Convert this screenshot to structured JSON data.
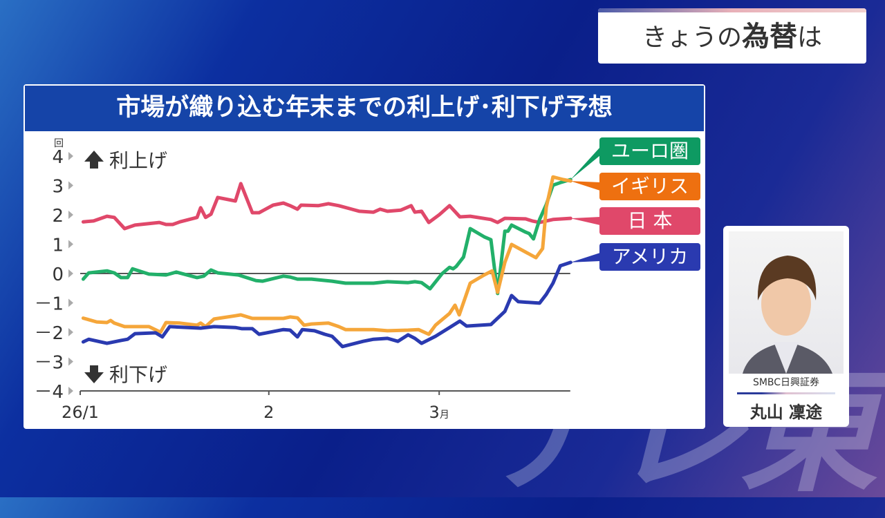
{
  "logo_text": "テレ東",
  "top_banner": {
    "prefix": "きょうの",
    "bold": "為替",
    "suffix": "は"
  },
  "guest": {
    "company": "SMBC日興証券",
    "name": "丸山 凜途"
  },
  "chart_data": {
    "type": "line",
    "title": "市場が織り込む年末までの利上げ･利下げ予想",
    "ylabel": "回",
    "ylim": [
      -4,
      4
    ],
    "yticks": [
      {
        "v": 4,
        "label": "4"
      },
      {
        "v": 3,
        "label": "3"
      },
      {
        "v": 2,
        "label": "2"
      },
      {
        "v": 1,
        "label": "1"
      },
      {
        "v": 0,
        "label": "0"
      },
      {
        "v": -1,
        "label": "－1"
      },
      {
        "v": -2,
        "label": "－2"
      },
      {
        "v": -3,
        "label": "－3"
      },
      {
        "v": -4,
        "label": "－4"
      }
    ],
    "x_unit": "days since 2026-01-01",
    "xlim": [
      0,
      81
    ],
    "xticks": [
      {
        "v": 0,
        "label": "26/1",
        "suffix": ""
      },
      {
        "v": 31,
        "label": "2",
        "suffix": ""
      },
      {
        "v": 59,
        "label": "3",
        "suffix": "月"
      }
    ],
    "annotations": {
      "up": "利上げ",
      "down": "利下げ"
    },
    "series": [
      {
        "name": "日 本",
        "color": "#e0486a",
        "label_color": "#e0486a",
        "points": [
          [
            0.5,
            1.76
          ],
          [
            2.2,
            1.79
          ],
          [
            4.4,
            1.95
          ],
          [
            5.6,
            1.91
          ],
          [
            7.3,
            1.53
          ],
          [
            9,
            1.65
          ],
          [
            13,
            1.74
          ],
          [
            14.1,
            1.67
          ],
          [
            15.2,
            1.67
          ],
          [
            16.4,
            1.76
          ],
          [
            19.2,
            1.91
          ],
          [
            19.8,
            2.24
          ],
          [
            20.6,
            1.91
          ],
          [
            21.5,
            2.02
          ],
          [
            22.6,
            2.59
          ],
          [
            25.5,
            2.47
          ],
          [
            26.4,
            3.06
          ],
          [
            28.3,
            2.07
          ],
          [
            29.4,
            2.07
          ],
          [
            31.7,
            2.33
          ],
          [
            33.4,
            2.4
          ],
          [
            34.5,
            2.31
          ],
          [
            35.7,
            2.19
          ],
          [
            36.3,
            2.33
          ],
          [
            39.1,
            2.31
          ],
          [
            40.8,
            2.38
          ],
          [
            42.5,
            2.31
          ],
          [
            45.9,
            2.12
          ],
          [
            48.2,
            2.09
          ],
          [
            49.3,
            2.19
          ],
          [
            50.5,
            2.12
          ],
          [
            52.7,
            2.16
          ],
          [
            54.4,
            2.31
          ],
          [
            55,
            2.09
          ],
          [
            56.1,
            2.12
          ],
          [
            57.3,
            1.74
          ],
          [
            59,
            2.0
          ],
          [
            60.7,
            2.31
          ],
          [
            62.4,
            1.93
          ],
          [
            64.1,
            1.95
          ],
          [
            67.5,
            1.84
          ],
          [
            68.6,
            1.74
          ],
          [
            69.8,
            1.88
          ],
          [
            73.2,
            1.86
          ],
          [
            74.3,
            1.79
          ],
          [
            75.5,
            1.74
          ],
          [
            77.7,
            1.84
          ],
          [
            80.6,
            1.88
          ]
        ]
      },
      {
        "name": "ユーロ圏",
        "color": "#22b06a",
        "label_color": "#0e9a62",
        "points": [
          [
            0.5,
            -0.19
          ],
          [
            1.4,
            0.02
          ],
          [
            4.4,
            0.09
          ],
          [
            5.6,
            0.02
          ],
          [
            6.7,
            -0.14
          ],
          [
            7.8,
            -0.14
          ],
          [
            8.6,
            0.16
          ],
          [
            11.3,
            -0.02
          ],
          [
            14.1,
            -0.05
          ],
          [
            15.8,
            0.05
          ],
          [
            19.2,
            -0.14
          ],
          [
            20.3,
            -0.09
          ],
          [
            21.5,
            0.12
          ],
          [
            22.6,
            0.02
          ],
          [
            26,
            -0.05
          ],
          [
            28.9,
            -0.24
          ],
          [
            30,
            -0.26
          ],
          [
            33.4,
            -0.09
          ],
          [
            34.5,
            -0.12
          ],
          [
            35.7,
            -0.19
          ],
          [
            38,
            -0.19
          ],
          [
            41.4,
            -0.26
          ],
          [
            43.6,
            -0.33
          ],
          [
            48.2,
            -0.33
          ],
          [
            50.5,
            -0.28
          ],
          [
            53.9,
            -0.31
          ],
          [
            55,
            -0.28
          ],
          [
            56.1,
            -0.31
          ],
          [
            57.5,
            -0.52
          ],
          [
            59.5,
            0.0
          ],
          [
            60.7,
            0.21
          ],
          [
            61.3,
            0.16
          ],
          [
            61.8,
            0.24
          ],
          [
            63,
            0.56
          ],
          [
            64.1,
            1.53
          ],
          [
            66.4,
            1.25
          ],
          [
            67.5,
            1.15
          ],
          [
            68.6,
            -0.68
          ],
          [
            69.8,
            1.44
          ],
          [
            70.3,
            1.44
          ],
          [
            70.9,
            1.65
          ],
          [
            73.2,
            1.41
          ],
          [
            73.8,
            1.36
          ],
          [
            74.5,
            1.18
          ],
          [
            75.5,
            1.84
          ],
          [
            76.6,
            2.35
          ],
          [
            77.7,
            3.01
          ],
          [
            79.1,
            3.11
          ],
          [
            80.6,
            3.2
          ]
        ]
      },
      {
        "name": "イギリス",
        "color": "#f5a63a",
        "label_color": "#ee7010",
        "points": [
          [
            0.5,
            -1.52
          ],
          [
            2.7,
            -1.65
          ],
          [
            4.4,
            -1.67
          ],
          [
            5,
            -1.6
          ],
          [
            5.6,
            -1.69
          ],
          [
            7.3,
            -1.81
          ],
          [
            11.3,
            -1.81
          ],
          [
            13.2,
            -2.0
          ],
          [
            14.1,
            -1.67
          ],
          [
            16.4,
            -1.69
          ],
          [
            19.2,
            -1.76
          ],
          [
            19.8,
            -1.69
          ],
          [
            20.6,
            -1.81
          ],
          [
            22,
            -1.55
          ],
          [
            25.5,
            -1.44
          ],
          [
            26.4,
            -1.41
          ],
          [
            28.3,
            -1.53
          ],
          [
            33.4,
            -1.53
          ],
          [
            34.5,
            -1.48
          ],
          [
            35.7,
            -1.51
          ],
          [
            36.8,
            -1.76
          ],
          [
            38,
            -1.72
          ],
          [
            40.8,
            -1.69
          ],
          [
            42.5,
            -1.81
          ],
          [
            43.6,
            -1.91
          ],
          [
            48.2,
            -1.91
          ],
          [
            50.5,
            -1.95
          ],
          [
            53.9,
            -1.93
          ],
          [
            55.6,
            -1.91
          ],
          [
            57.3,
            -2.07
          ],
          [
            58.4,
            -1.76
          ],
          [
            60.7,
            -1.36
          ],
          [
            61.6,
            -1.08
          ],
          [
            62.3,
            -1.41
          ],
          [
            64.1,
            -0.33
          ],
          [
            66.4,
            -0.05
          ],
          [
            67.7,
            0.09
          ],
          [
            68.6,
            -0.64
          ],
          [
            69.8,
            0.38
          ],
          [
            70.9,
            0.99
          ],
          [
            74.9,
            0.54
          ],
          [
            76,
            0.85
          ],
          [
            76.6,
            2.26
          ],
          [
            77.7,
            3.29
          ],
          [
            79.4,
            3.2
          ],
          [
            80.6,
            3.15
          ]
        ]
      },
      {
        "name": "アメリカ",
        "color": "#2a3ab0",
        "label_color": "#2a3ab0",
        "points": [
          [
            0.5,
            -2.33
          ],
          [
            1.4,
            -2.24
          ],
          [
            4.4,
            -2.38
          ],
          [
            6.7,
            -2.28
          ],
          [
            7.8,
            -2.24
          ],
          [
            9,
            -2.05
          ],
          [
            12.4,
            -2.02
          ],
          [
            13.5,
            -2.16
          ],
          [
            14.7,
            -1.81
          ],
          [
            19.8,
            -1.86
          ],
          [
            22,
            -1.81
          ],
          [
            25.5,
            -1.84
          ],
          [
            26.6,
            -1.88
          ],
          [
            28.3,
            -1.88
          ],
          [
            29.4,
            -2.07
          ],
          [
            31.7,
            -1.98
          ],
          [
            33.4,
            -1.91
          ],
          [
            34.5,
            -1.93
          ],
          [
            35.7,
            -2.16
          ],
          [
            36.5,
            -1.91
          ],
          [
            38.5,
            -1.95
          ],
          [
            40.2,
            -2.07
          ],
          [
            41.4,
            -2.14
          ],
          [
            43.1,
            -2.49
          ],
          [
            46.5,
            -2.31
          ],
          [
            48.2,
            -2.24
          ],
          [
            50.5,
            -2.21
          ],
          [
            52.2,
            -2.31
          ],
          [
            53.9,
            -2.09
          ],
          [
            55,
            -2.21
          ],
          [
            56.1,
            -2.38
          ],
          [
            58.4,
            -2.14
          ],
          [
            60.7,
            -1.84
          ],
          [
            62.4,
            -1.62
          ],
          [
            63.5,
            -1.79
          ],
          [
            67.5,
            -1.74
          ],
          [
            69.8,
            -1.29
          ],
          [
            70.9,
            -0.75
          ],
          [
            72,
            -0.96
          ],
          [
            75.5,
            -1.01
          ],
          [
            76.6,
            -0.71
          ],
          [
            77.7,
            -0.33
          ],
          [
            78.9,
            0.26
          ],
          [
            80.6,
            0.38
          ]
        ]
      }
    ]
  }
}
